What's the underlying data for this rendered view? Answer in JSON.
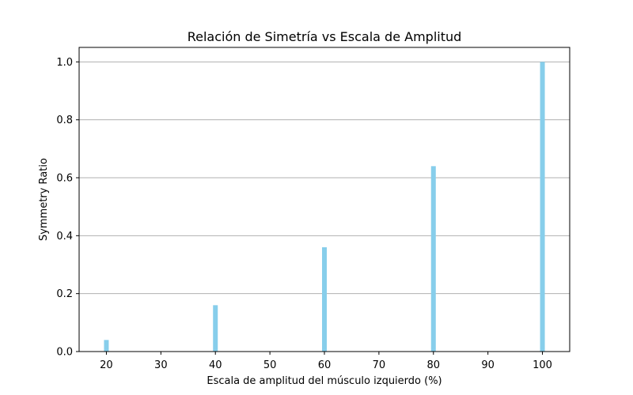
{
  "chart_data": {
    "type": "bar",
    "title": "Relación de Simetría vs Escala de Amplitud",
    "xlabel": "Escala de amplitud del músculo izquierdo (%)",
    "ylabel": "Symmetry Ratio",
    "x": [
      20,
      40,
      60,
      80,
      100
    ],
    "values": [
      0.04,
      0.16,
      0.36,
      0.64,
      1.0
    ],
    "xlim": [
      15,
      105
    ],
    "ylim": [
      0,
      1.05
    ],
    "xticks": [
      "20",
      "30",
      "40",
      "50",
      "60",
      "70",
      "80",
      "90",
      "100"
    ],
    "yticks": [
      "0.0",
      "0.2",
      "0.4",
      "0.6",
      "0.8",
      "1.0"
    ],
    "grid": "y-major",
    "bar_color": "#87ceeb",
    "grid_color": "#b0b0b0"
  }
}
